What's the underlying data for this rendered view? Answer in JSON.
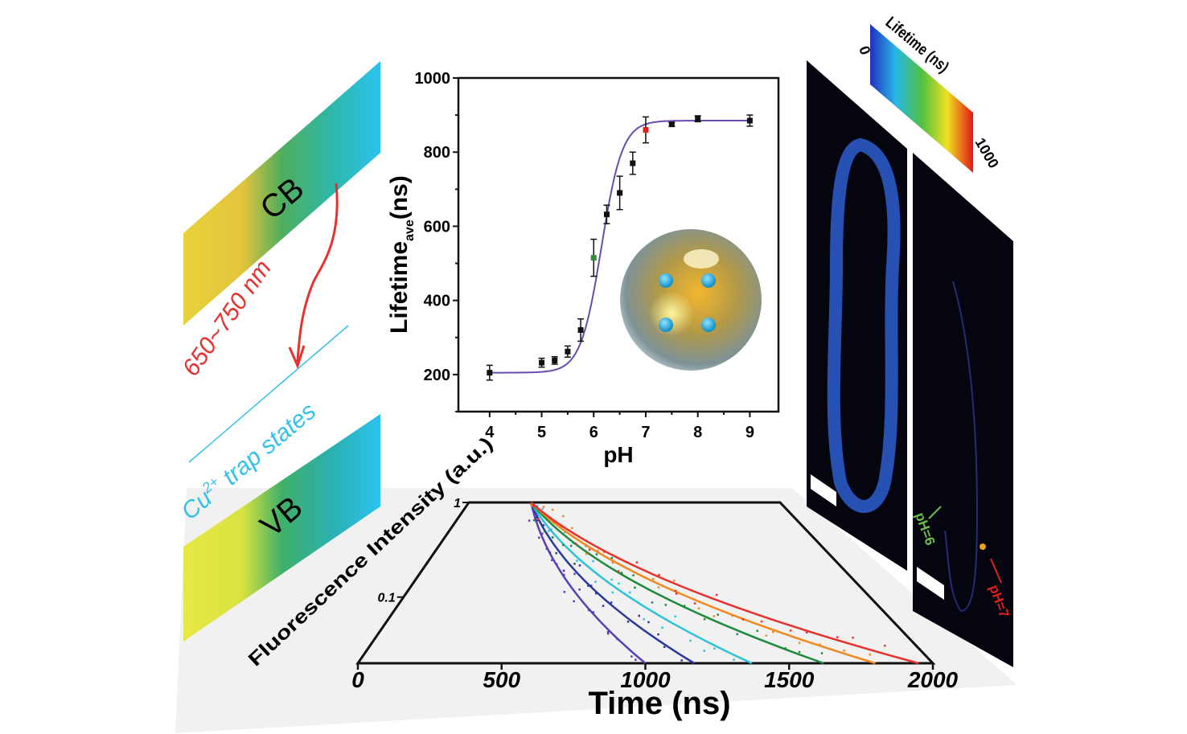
{
  "colors": {
    "band_yellow": "#e8e845",
    "band_green": "#3fb068",
    "band_cyan": "#2bc3ee",
    "arrow_red": "#e8312e",
    "trap_cyan": "#35c0ea",
    "fit_line": "#6a4bb0",
    "point_green": "#2f8a3a",
    "point_red": "#e02020"
  },
  "band_diagram": {
    "cb_label": "CB",
    "vb_label": "VB",
    "emission_label": "650~750 nm",
    "trap_label_prefix": "Cu",
    "trap_label_sup": "2+",
    "trap_label_suffix": " trap states"
  },
  "microscopy": {
    "colorbar_title": "Lifetime (ns)",
    "colorbar_min": "0",
    "colorbar_max": "1000",
    "label_ph6": "pH=6",
    "label_ph7": "pH=7"
  },
  "chart_data": [
    {
      "type": "scatter",
      "xlabel": "pH",
      "ylabel_main": "Lifetime",
      "ylabel_sub": "ave",
      "ylabel_unit": "(ns)",
      "xlim": [
        3.4,
        9.55
      ],
      "ylim": [
        100,
        1000
      ],
      "xticks": [
        "4",
        "5",
        "6",
        "7",
        "8",
        "9"
      ],
      "yticks": [
        "200",
        "400",
        "600",
        "800",
        "1000"
      ],
      "grid": false,
      "fit": "sigmoidal",
      "points": [
        {
          "x": 4.0,
          "y": 205,
          "err": 20,
          "color": "#111111"
        },
        {
          "x": 5.0,
          "y": 232,
          "err": 12,
          "color": "#111111"
        },
        {
          "x": 5.25,
          "y": 238,
          "err": 10,
          "color": "#111111"
        },
        {
          "x": 5.5,
          "y": 262,
          "err": 15,
          "color": "#111111"
        },
        {
          "x": 5.75,
          "y": 320,
          "err": 30,
          "color": "#111111"
        },
        {
          "x": 6.0,
          "y": 515,
          "err": 50,
          "color": "#2f8a3a"
        },
        {
          "x": 6.25,
          "y": 632,
          "err": 25,
          "color": "#111111"
        },
        {
          "x": 6.5,
          "y": 690,
          "err": 45,
          "color": "#111111"
        },
        {
          "x": 6.75,
          "y": 770,
          "err": 30,
          "color": "#111111"
        },
        {
          "x": 7.0,
          "y": 860,
          "err": 35,
          "color": "#e02020"
        },
        {
          "x": 7.5,
          "y": 875,
          "err": 5,
          "color": "#111111"
        },
        {
          "x": 8.0,
          "y": 890,
          "err": 8,
          "color": "#111111"
        },
        {
          "x": 9.0,
          "y": 885,
          "err": 15,
          "color": "#111111"
        }
      ]
    },
    {
      "type": "line",
      "xlabel": "Time (ns)",
      "ylabel": "Fluorescence Intensity (a.u.)",
      "xlim": [
        0,
        2000
      ],
      "ylim": [
        0.02,
        1
      ],
      "yscale": "log",
      "xticks": [
        "0",
        "500",
        "1000",
        "1500",
        "2000"
      ],
      "yticks": [
        "0.1",
        "1"
      ],
      "series": [
        {
          "color": "#5b3fb5",
          "points": [
            [
              400,
              1
            ],
            [
              700,
              0.14
            ],
            [
              1000,
              0.02
            ]
          ]
        },
        {
          "color": "#2a3a9c",
          "points": [
            [
              400,
              1
            ],
            [
              785,
              0.14
            ],
            [
              1170,
              0.02
            ]
          ]
        },
        {
          "color": "#2bc3d8",
          "points": [
            [
              400,
              1
            ],
            [
              885,
              0.14
            ],
            [
              1370,
              0.02
            ]
          ]
        },
        {
          "color": "#1f8a3e",
          "points": [
            [
              400,
              1
            ],
            [
              1010,
              0.14
            ],
            [
              1620,
              0.02
            ]
          ]
        },
        {
          "color": "#f08a1e",
          "points": [
            [
              400,
              1
            ],
            [
              1100,
              0.14
            ],
            [
              1800,
              0.02
            ]
          ]
        },
        {
          "color": "#e8312e",
          "points": [
            [
              400,
              1
            ],
            [
              1175,
              0.14
            ],
            [
              1950,
              0.02
            ]
          ]
        }
      ]
    }
  ]
}
